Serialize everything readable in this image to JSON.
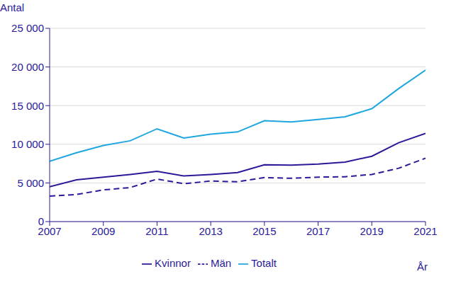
{
  "chart_data": {
    "type": "line",
    "y_label": "Antal",
    "x_label": "År",
    "x": [
      2007,
      2008,
      2009,
      2010,
      2011,
      2012,
      2013,
      2014,
      2015,
      2016,
      2017,
      2018,
      2019,
      2020,
      2021
    ],
    "series": [
      {
        "name": "Kvinnor",
        "color": "#2a1a9a",
        "line_style": "solid",
        "values": [
          4500,
          5400,
          5750,
          6100,
          6500,
          5900,
          6100,
          6350,
          7350,
          7300,
          7450,
          7700,
          8450,
          10200,
          11400
        ]
      },
      {
        "name": "Män",
        "color": "#2a1a9a",
        "line_style": "dashed",
        "values": [
          3300,
          3500,
          4100,
          4400,
          5500,
          4900,
          5250,
          5150,
          5700,
          5600,
          5750,
          5800,
          6100,
          6900,
          8200
        ]
      },
      {
        "name": "Totalt",
        "color": "#1fa6e0",
        "line_style": "solid",
        "values": [
          7800,
          8900,
          9850,
          10450,
          12000,
          10800,
          11300,
          11600,
          13050,
          12900,
          13200,
          13550,
          14600,
          17200,
          19600
        ]
      }
    ],
    "xlim": [
      2007,
      2021
    ],
    "xticks": [
      2007,
      2009,
      2011,
      2013,
      2015,
      2017,
      2019,
      2021
    ],
    "ylim": [
      0,
      25000
    ],
    "yticks": [
      0,
      {
        "value": 5000,
        "label": "5 000"
      },
      {
        "value": 10000,
        "label": "10 000"
      },
      {
        "value": 15000,
        "label": "15 000"
      },
      {
        "value": 20000,
        "label": "20 000"
      },
      {
        "value": 25000,
        "label": "25 000"
      }
    ],
    "grid": true,
    "legend": "bottom"
  }
}
